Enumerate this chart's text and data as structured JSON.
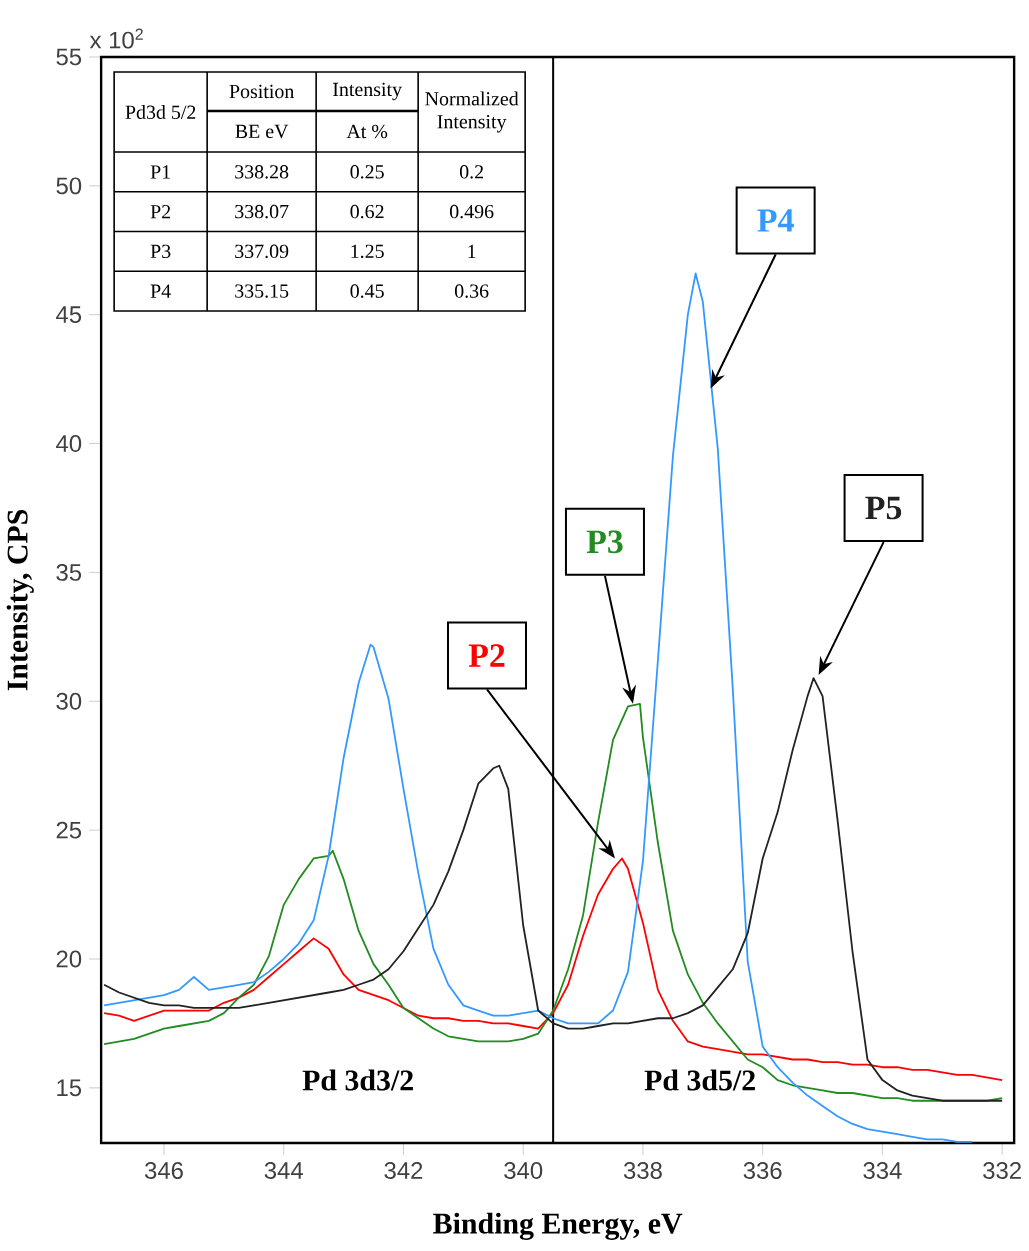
{
  "chart_data": [
    {
      "type": "line",
      "xlabel": "Binding Energy, eV",
      "ylabel": "Intensity, CPS",
      "xlim": [
        347.05,
        331.8
      ],
      "ylim": [
        12.86,
        55
      ],
      "xticks": [
        346,
        344,
        342,
        340,
        338,
        336,
        334,
        332
      ],
      "yticks": [
        15,
        20,
        25,
        30,
        35,
        40,
        45,
        50,
        55
      ],
      "series": [
        {
          "name": "P2",
          "color": "#ff0000",
          "x": [
            347,
            346.75,
            346.5,
            346.25,
            346,
            345.75,
            345.5,
            345.25,
            345,
            344.75,
            344.5,
            344.25,
            344,
            343.75,
            343.5,
            343.25,
            343,
            342.75,
            342.5,
            342.25,
            342,
            341.75,
            341.5,
            341.25,
            341,
            340.75,
            340.5,
            340.25,
            340,
            339.75,
            339.5,
            339.25,
            339,
            338.75,
            338.5,
            338.35,
            338.25,
            338,
            337.75,
            337.5,
            337.25,
            337,
            336.75,
            336.5,
            336.25,
            336,
            335.75,
            335.5,
            335.25,
            335,
            334.75,
            334.5,
            334.25,
            334,
            333.75,
            333.5,
            333.25,
            333,
            332.75,
            332.5,
            332.25,
            332
          ],
          "values": [
            17.9,
            17.8,
            17.6,
            17.8,
            18.0,
            18.0,
            18.0,
            18.0,
            18.3,
            18.5,
            18.8,
            19.3,
            19.8,
            20.3,
            20.8,
            20.4,
            19.4,
            18.8,
            18.6,
            18.4,
            18.1,
            17.8,
            17.7,
            17.7,
            17.6,
            17.6,
            17.5,
            17.5,
            17.4,
            17.3,
            17.9,
            19.0,
            20.9,
            22.5,
            23.5,
            23.9,
            23.5,
            21.4,
            18.8,
            17.6,
            16.8,
            16.6,
            16.5,
            16.4,
            16.3,
            16.3,
            16.2,
            16.1,
            16.1,
            16.0,
            16.0,
            15.9,
            15.9,
            15.8,
            15.8,
            15.7,
            15.7,
            15.6,
            15.5,
            15.5,
            15.4,
            15.3
          ]
        },
        {
          "name": "P3",
          "color": "#228b22",
          "x": [
            347,
            346.75,
            346.5,
            346.25,
            346,
            345.75,
            345.5,
            345.25,
            345,
            344.75,
            344.5,
            344.25,
            344,
            343.75,
            343.5,
            343.25,
            343.18,
            343,
            342.75,
            342.5,
            342.25,
            342,
            341.75,
            341.5,
            341.25,
            341,
            340.75,
            340.5,
            340.25,
            340,
            339.75,
            339.5,
            339.25,
            339,
            338.75,
            338.5,
            338.25,
            338.05,
            338,
            337.75,
            337.5,
            337.25,
            337,
            336.75,
            336.5,
            336.25,
            336,
            335.75,
            335.5,
            335.25,
            335,
            334.75,
            334.5,
            334.25,
            334,
            333.75,
            333.5,
            333.25,
            333,
            332.75,
            332.5,
            332.25,
            332
          ],
          "values": [
            16.7,
            16.8,
            16.9,
            17.1,
            17.3,
            17.4,
            17.5,
            17.6,
            17.9,
            18.5,
            19.0,
            20.1,
            22.1,
            23.1,
            23.9,
            24.0,
            24.2,
            23.1,
            21.1,
            19.8,
            19.0,
            18.1,
            17.7,
            17.3,
            17.0,
            16.9,
            16.8,
            16.8,
            16.8,
            16.9,
            17.1,
            18.0,
            19.6,
            21.7,
            25.3,
            28.5,
            29.8,
            29.9,
            28.6,
            24.5,
            21.1,
            19.4,
            18.3,
            17.5,
            16.8,
            16.1,
            15.8,
            15.3,
            15.1,
            15.0,
            14.9,
            14.8,
            14.8,
            14.7,
            14.6,
            14.6,
            14.5,
            14.5,
            14.5,
            14.5,
            14.5,
            14.5,
            14.6
          ]
        },
        {
          "name": "P4",
          "color": "#3399ff",
          "x": [
            347,
            346.75,
            346.5,
            346.25,
            346,
            345.75,
            345.5,
            345.25,
            345,
            344.75,
            344.5,
            344.25,
            344,
            343.75,
            343.5,
            343.25,
            343,
            342.75,
            342.55,
            342.5,
            342.25,
            342,
            341.75,
            341.5,
            341.25,
            341,
            340.75,
            340.5,
            340.25,
            340,
            339.75,
            339.5,
            339.25,
            339,
            338.75,
            338.5,
            338.25,
            338,
            337.75,
            337.5,
            337.25,
            337.12,
            337,
            336.75,
            336.5,
            336.25,
            336,
            335.75,
            335.5,
            335.25,
            335,
            334.75,
            334.5,
            334.25,
            334,
            333.75,
            333.5,
            333.25,
            333,
            332.75,
            332.5
          ],
          "values": [
            18.2,
            18.3,
            18.4,
            18.5,
            18.6,
            18.8,
            19.3,
            18.8,
            18.9,
            19.0,
            19.1,
            19.5,
            20.0,
            20.6,
            21.5,
            24.0,
            27.8,
            30.7,
            32.2,
            32.1,
            30.1,
            26.6,
            23.3,
            20.4,
            19.0,
            18.2,
            18.0,
            17.8,
            17.8,
            17.9,
            18.0,
            17.7,
            17.5,
            17.5,
            17.5,
            18.0,
            19.5,
            23.8,
            31.6,
            39.5,
            45.0,
            46.6,
            45.5,
            39.8,
            30.5,
            19.9,
            16.6,
            15.8,
            15.2,
            14.7,
            14.3,
            13.9,
            13.6,
            13.4,
            13.3,
            13.2,
            13.1,
            13.0,
            13.0,
            12.9,
            12.9
          ]
        },
        {
          "name": "P5",
          "color": "#222222",
          "x": [
            347,
            346.75,
            346.5,
            346.25,
            346,
            345.75,
            345.5,
            345.25,
            345,
            344.75,
            344.5,
            344.25,
            344,
            343.75,
            343.5,
            343.25,
            343,
            342.75,
            342.5,
            342.25,
            342,
            341.75,
            341.5,
            341.25,
            341,
            340.75,
            340.5,
            340.4,
            340.25,
            340,
            339.75,
            339.5,
            339.25,
            339,
            338.75,
            338.5,
            338.25,
            338,
            337.75,
            337.5,
            337.25,
            337,
            336.75,
            336.5,
            336.25,
            336,
            335.75,
            335.5,
            335.25,
            335.15,
            335,
            334.75,
            334.5,
            334.25,
            334,
            333.75,
            333.5,
            333.25,
            333,
            332.75,
            332.5,
            332.25,
            332
          ],
          "values": [
            19.0,
            18.7,
            18.5,
            18.3,
            18.2,
            18.2,
            18.1,
            18.1,
            18.1,
            18.1,
            18.2,
            18.3,
            18.4,
            18.5,
            18.6,
            18.7,
            18.8,
            19.0,
            19.2,
            19.6,
            20.3,
            21.2,
            22.1,
            23.4,
            25.0,
            26.8,
            27.4,
            27.5,
            26.6,
            21.3,
            18.0,
            17.5,
            17.3,
            17.3,
            17.4,
            17.5,
            17.5,
            17.6,
            17.7,
            17.7,
            17.9,
            18.2,
            18.9,
            19.6,
            21.0,
            23.9,
            25.7,
            28.1,
            30.2,
            30.9,
            30.2,
            25.4,
            20.3,
            16.1,
            15.3,
            14.9,
            14.7,
            14.6,
            14.5,
            14.5,
            14.5,
            14.5,
            14.5
          ]
        }
      ],
      "ref_lines": [
        {
          "axis": "x",
          "value": 339.5,
          "color": "#000000"
        }
      ],
      "annotations": [
        "Pd 3d3/2",
        "Pd 3d5/2",
        "x 10$^{2}$"
      ]
    },
    {
      "type": "other",
      "annotations": [
        "Pd3d 5/2",
        "Position",
        "Intensity",
        "Normalized Intensity",
        "BE eV",
        "At %",
        "P1",
        "338.28",
        "0.25",
        "0.2",
        "P2",
        "338.07",
        "0.62",
        "0.496",
        "P3",
        "337.09",
        "1.25",
        "1",
        "P4",
        "335.15",
        "0.45",
        "0.36"
      ]
    }
  ]
}
